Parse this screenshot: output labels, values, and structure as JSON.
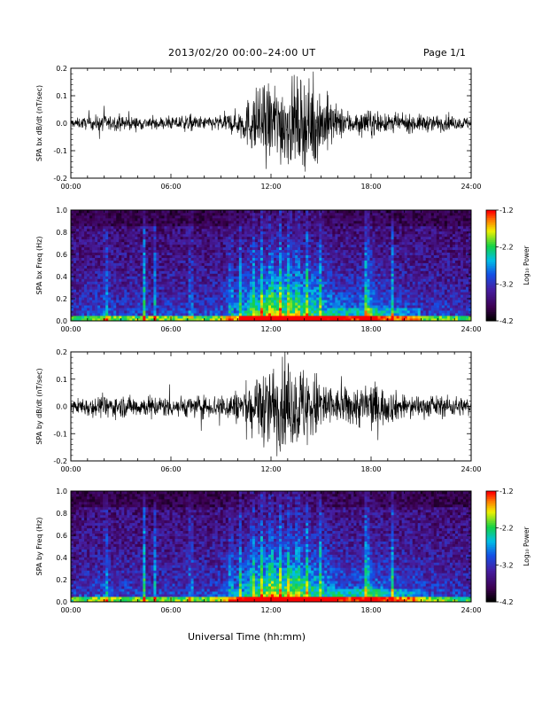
{
  "header": {
    "title": "2013/02/20  00:00–24:00 UT",
    "page": "Page 1/1"
  },
  "chart_data": [
    {
      "type": "line",
      "ylabel": "SPA bx dB/dt (nT/sec)",
      "ylim": [
        -0.2,
        0.2
      ],
      "yticks": [
        "-0.2",
        "-0.1",
        "0.0",
        "0.1",
        "0.2"
      ],
      "xlim": [
        0,
        24
      ],
      "xticks": [
        "00:00",
        "06:00",
        "12:00",
        "18:00",
        "24:00"
      ],
      "x": [
        0,
        1,
        2,
        3,
        4,
        5,
        6,
        7,
        8,
        9,
        10,
        11,
        12,
        13,
        14,
        15,
        16,
        17,
        18,
        19,
        20,
        21,
        22,
        23,
        24
      ],
      "amplitude": [
        0.02,
        0.03,
        0.04,
        0.03,
        0.03,
        0.03,
        0.03,
        0.04,
        0.03,
        0.04,
        0.06,
        0.15,
        0.2,
        0.2,
        0.2,
        0.17,
        0.08,
        0.05,
        0.06,
        0.04,
        0.04,
        0.04,
        0.04,
        0.03,
        0.03
      ]
    },
    {
      "type": "heatmap",
      "ylabel": "SPA bx Freq (Hz)",
      "ylim": [
        0,
        1
      ],
      "yticks": [
        "0.0",
        "0.2",
        "0.4",
        "0.6",
        "0.8",
        "1.0"
      ],
      "xlim": [
        0,
        24
      ],
      "xticks": [
        "00:00",
        "06:00",
        "12:00",
        "18:00",
        "24:00"
      ],
      "colorbar": {
        "label": "Log₁₀ Power",
        "range": [
          -4.2,
          -1.2
        ],
        "ticks": [
          "-1.2",
          "-2.2",
          "-3.2",
          "-4.2"
        ]
      },
      "activity": [
        0.25,
        0.3,
        0.35,
        0.28,
        0.3,
        0.3,
        0.3,
        0.28,
        0.3,
        0.35,
        0.5,
        0.8,
        0.95,
        0.9,
        0.85,
        0.7,
        0.5,
        0.45,
        0.55,
        0.4,
        0.35,
        0.3,
        0.3,
        0.28,
        0.25
      ]
    },
    {
      "type": "line",
      "ylabel": "SPA by dB/dt (nT/sec)",
      "ylim": [
        -0.2,
        0.2
      ],
      "yticks": [
        "-0.2",
        "-0.1",
        "0.0",
        "0.1",
        "0.2"
      ],
      "xlim": [
        0,
        24
      ],
      "xticks": [
        "00:00",
        "06:00",
        "12:00",
        "18:00",
        "24:00"
      ],
      "x": [
        0,
        1,
        2,
        3,
        4,
        5,
        6,
        7,
        8,
        9,
        10,
        11,
        12,
        13,
        14,
        15,
        16,
        17,
        18,
        19,
        20,
        21,
        22,
        23,
        24
      ],
      "amplitude": [
        0.03,
        0.05,
        0.05,
        0.05,
        0.05,
        0.05,
        0.05,
        0.05,
        0.05,
        0.06,
        0.08,
        0.15,
        0.2,
        0.2,
        0.2,
        0.15,
        0.08,
        0.1,
        0.12,
        0.08,
        0.06,
        0.05,
        0.05,
        0.05,
        0.04
      ]
    },
    {
      "type": "heatmap",
      "ylabel": "SPA by Freq (Hz)",
      "ylim": [
        0,
        1
      ],
      "yticks": [
        "0.0",
        "0.2",
        "0.4",
        "0.6",
        "0.8",
        "1.0"
      ],
      "xlim": [
        0,
        24
      ],
      "xticks": [
        "00:00",
        "06:00",
        "12:00",
        "18:00",
        "24:00"
      ],
      "colorbar": {
        "label": "Log₁₀ Power",
        "range": [
          -4.2,
          -1.2
        ],
        "ticks": [
          "-1.2",
          "-2.2",
          "-3.2",
          "-4.2"
        ]
      },
      "activity": [
        0.25,
        0.3,
        0.35,
        0.3,
        0.3,
        0.3,
        0.3,
        0.3,
        0.3,
        0.35,
        0.5,
        0.8,
        0.95,
        0.9,
        0.85,
        0.7,
        0.5,
        0.45,
        0.55,
        0.45,
        0.4,
        0.35,
        0.3,
        0.28,
        0.25
      ]
    }
  ],
  "xlabel": "Universal Time (hh:mm)"
}
